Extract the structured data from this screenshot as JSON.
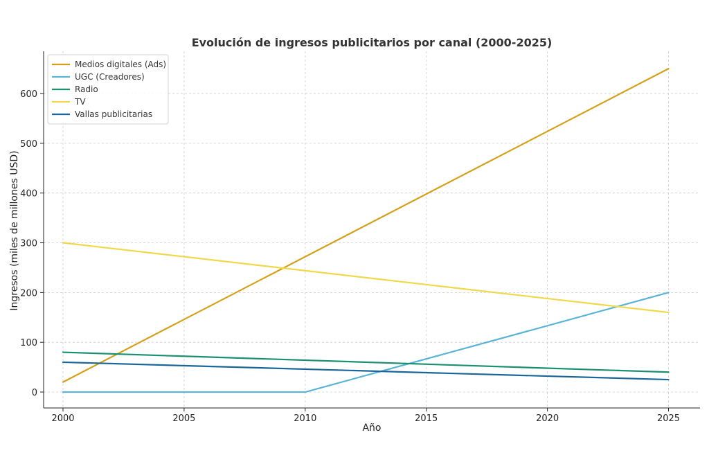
{
  "chart_data": {
    "type": "line",
    "title": "Evolución de ingresos publicitarios por canal (2000-2025)",
    "xlabel": "Año",
    "ylabel": "Ingresos (miles de millones USD)",
    "xlim": [
      1999.2,
      2026.3
    ],
    "ylim": [
      -32,
      685
    ],
    "x_ticks": [
      2000,
      2005,
      2010,
      2015,
      2020,
      2025
    ],
    "y_ticks": [
      0,
      100,
      200,
      300,
      400,
      500,
      600
    ],
    "grid": true,
    "legend_position": "top-left",
    "series": [
      {
        "name": "Medios digitales (Ads)",
        "color": "#d4a017",
        "x": [
          2000,
          2025
        ],
        "y": [
          20,
          650
        ]
      },
      {
        "name": "UGC (Creadores)",
        "color": "#5ab4d6",
        "x": [
          2000,
          2010,
          2025
        ],
        "y": [
          0,
          0,
          200
        ]
      },
      {
        "name": "Radio",
        "color": "#1a9070",
        "x": [
          2000,
          2025
        ],
        "y": [
          80,
          40
        ]
      },
      {
        "name": "TV",
        "color": "#f0d84a",
        "x": [
          2000,
          2025
        ],
        "y": [
          300,
          160
        ]
      },
      {
        "name": "Vallas publicitarias",
        "color": "#1a6699",
        "x": [
          2000,
          2025
        ],
        "y": [
          60,
          25
        ]
      }
    ]
  }
}
